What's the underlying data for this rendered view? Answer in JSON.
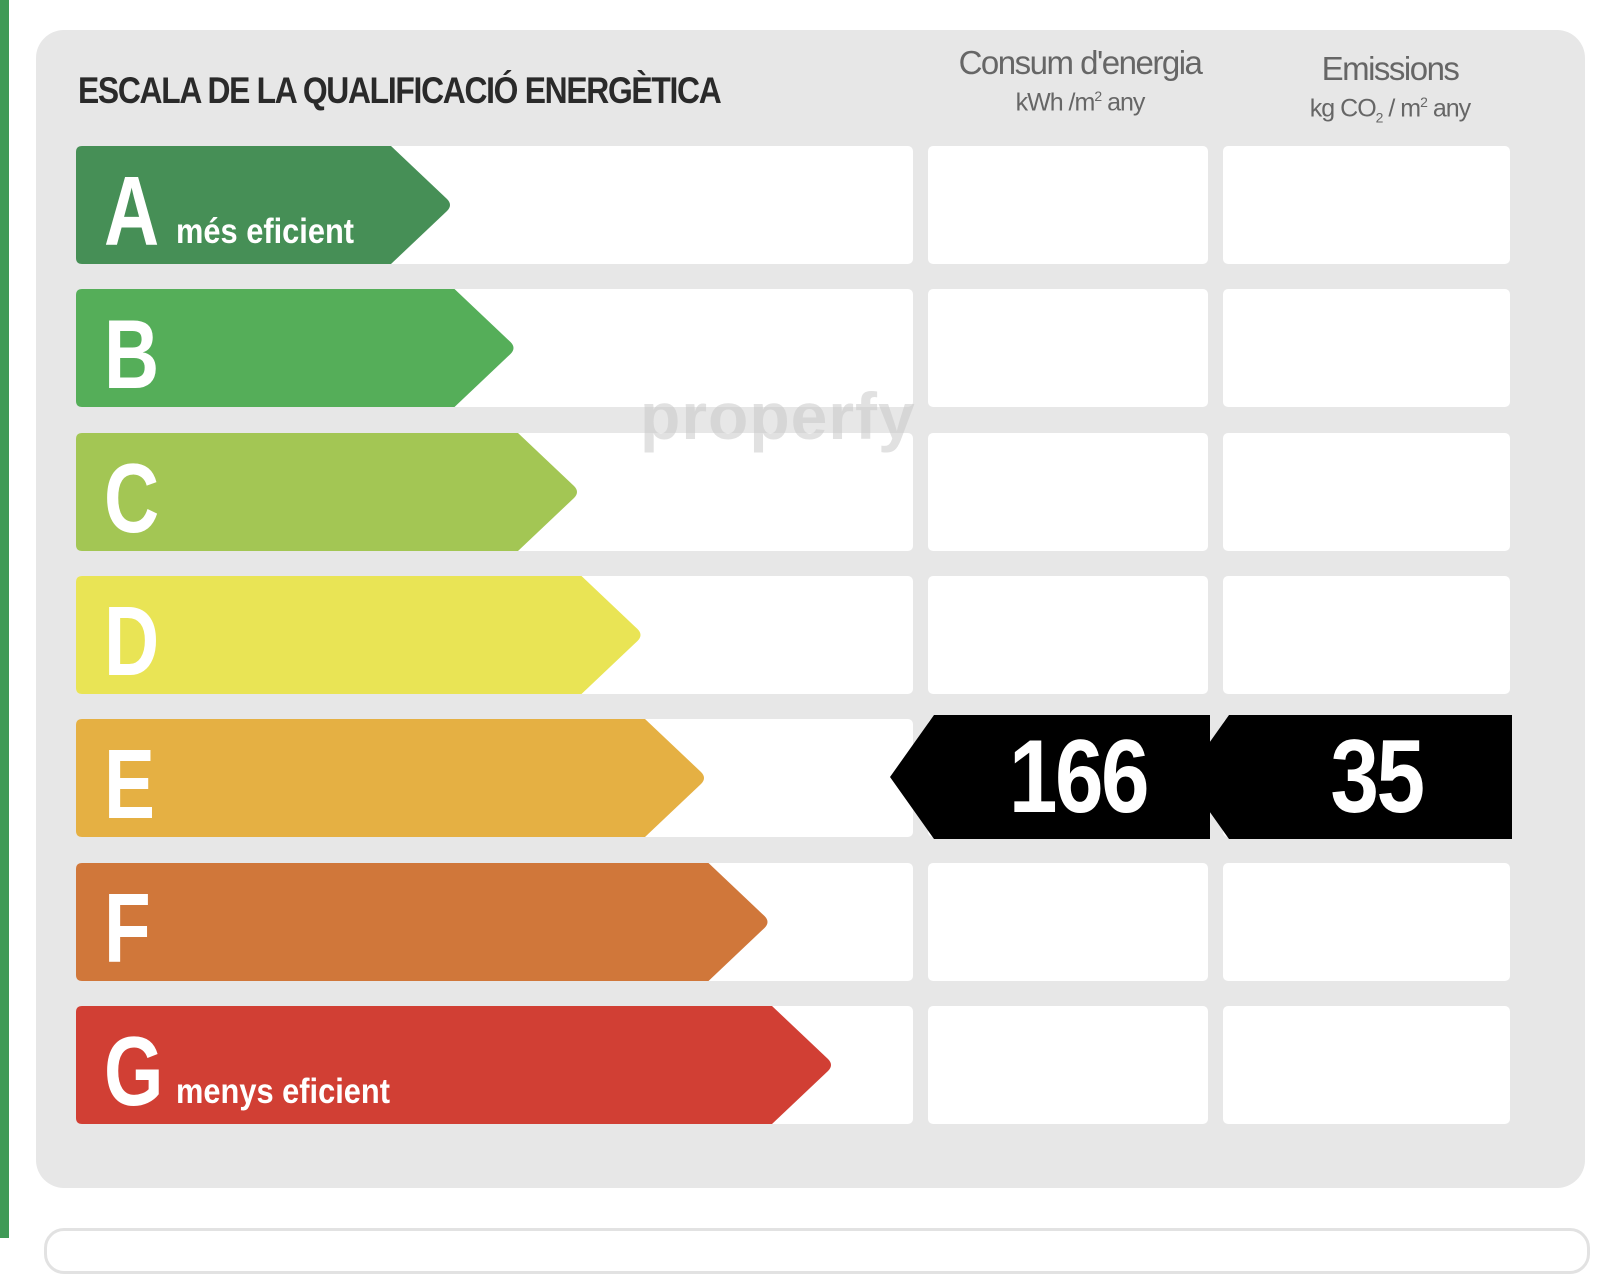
{
  "title": "ESCALA DE LA QUALIFICACIÓ ENERGÈTICA",
  "columns": {
    "energy": {
      "label": "Consum d'energia",
      "unit_prefix": "kWh /m",
      "unit_sup": "2",
      "unit_suffix": " any"
    },
    "emissions": {
      "label": "Emissions",
      "unit_prefix": "kg CO",
      "unit_sub": "2",
      "unit_mid": " / m",
      "unit_sup": "2",
      "unit_suffix": " any"
    }
  },
  "watermark": "properfy",
  "chart_data": {
    "type": "table",
    "ratings": [
      {
        "letter": "A",
        "label": "més eficient",
        "color": "#468f56"
      },
      {
        "letter": "B",
        "label": "",
        "color": "#55ae59"
      },
      {
        "letter": "C",
        "label": "",
        "color": "#a3c654"
      },
      {
        "letter": "D",
        "label": "",
        "color": "#e9e455"
      },
      {
        "letter": "E",
        "label": "",
        "color": "#e5b043"
      },
      {
        "letter": "F",
        "label": "",
        "color": "#d0773a"
      },
      {
        "letter": "G",
        "label": "menys eficient",
        "color": "#d13f34"
      }
    ],
    "current_rating": "E",
    "energy_consumption": {
      "value": "166"
    },
    "emissions": {
      "value": "35"
    }
  }
}
